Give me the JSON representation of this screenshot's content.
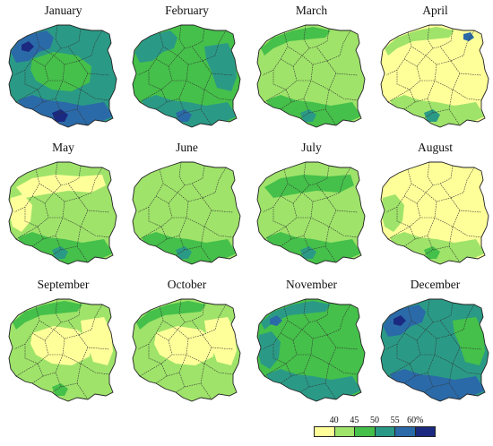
{
  "months": [
    {
      "name": "January",
      "base": "c3",
      "blobs": [
        [
          "c4",
          "nw"
        ],
        [
          "c2",
          "center"
        ],
        [
          "c4",
          "south"
        ],
        [
          "c5",
          "nwdot"
        ],
        [
          "c5",
          "sdot"
        ]
      ]
    },
    {
      "name": "February",
      "base": "c2",
      "blobs": [
        [
          "c3",
          "nw"
        ],
        [
          "c3",
          "east"
        ],
        [
          "c3",
          "south"
        ],
        [
          "c4",
          "sdot"
        ]
      ]
    },
    {
      "name": "March",
      "base": "c1",
      "blobs": [
        [
          "c2",
          "south"
        ],
        [
          "c2",
          "ncoast"
        ],
        [
          "c3",
          "sdot"
        ]
      ]
    },
    {
      "name": "April",
      "base": "c0",
      "blobs": [
        [
          "c1",
          "south"
        ],
        [
          "c3",
          "sdot"
        ],
        [
          "c1",
          "ncoast"
        ],
        [
          "c4",
          "nedot"
        ]
      ]
    },
    {
      "name": "May",
      "base": "c1",
      "blobs": [
        [
          "c0",
          "nband"
        ],
        [
          "c0",
          "west"
        ],
        [
          "c2",
          "south"
        ],
        [
          "c3",
          "sdot"
        ]
      ]
    },
    {
      "name": "June",
      "base": "c1",
      "blobs": [
        [
          "c2",
          "south"
        ],
        [
          "c3",
          "sdot"
        ]
      ]
    },
    {
      "name": "July",
      "base": "c1",
      "blobs": [
        [
          "c2",
          "nband"
        ],
        [
          "c2",
          "south"
        ],
        [
          "c3",
          "sdot"
        ]
      ]
    },
    {
      "name": "August",
      "base": "c0",
      "blobs": [
        [
          "c1",
          "west"
        ],
        [
          "c1",
          "south"
        ],
        [
          "c2",
          "sdot"
        ]
      ]
    },
    {
      "name": "September",
      "base": "c1",
      "blobs": [
        [
          "c0",
          "center"
        ],
        [
          "c0",
          "east"
        ],
        [
          "c2",
          "ncoast"
        ],
        [
          "c2",
          "sdot"
        ]
      ]
    },
    {
      "name": "October",
      "base": "c1",
      "blobs": [
        [
          "c0",
          "center"
        ],
        [
          "c0",
          "east"
        ],
        [
          "c2",
          "ncoast"
        ]
      ]
    },
    {
      "name": "November",
      "base": "c2",
      "blobs": [
        [
          "c3",
          "west"
        ],
        [
          "c3",
          "ncoast"
        ],
        [
          "c3",
          "south"
        ],
        [
          "c4",
          "nwdot"
        ]
      ]
    },
    {
      "name": "December",
      "base": "c3",
      "blobs": [
        [
          "c4",
          "nw"
        ],
        [
          "c4",
          "south"
        ],
        [
          "c5",
          "nwdot"
        ],
        [
          "c2",
          "east"
        ]
      ]
    }
  ],
  "legend": {
    "ticks": [
      "40",
      "45",
      "50",
      "55",
      "60%"
    ],
    "colors": [
      "#ffff9a",
      "#9fe36a",
      "#45c04a",
      "#2a9a86",
      "#2b6aa8",
      "#1b2a80"
    ]
  },
  "palette": {
    "c0": "#ffff9a",
    "c1": "#9fe36a",
    "c2": "#45c04a",
    "c3": "#2a9a86",
    "c4": "#2b6aa8",
    "c5": "#1b2a80"
  }
}
